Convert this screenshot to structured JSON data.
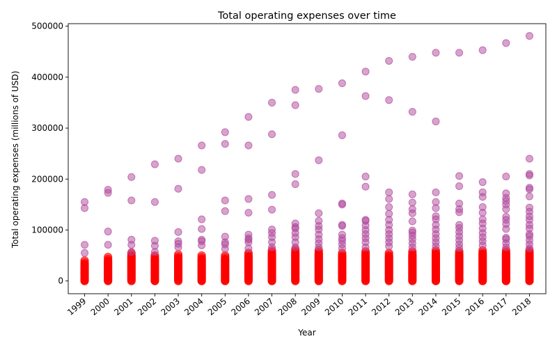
{
  "chart_data": {
    "type": "scatter",
    "title": "Total operating expenses over time",
    "xlabel": "Year",
    "ylabel": "Total operating expenses (millions of USD)",
    "xlim": [
      1998.3,
      2018.7
    ],
    "ylim": [
      -25000,
      505000
    ],
    "x_ticks": [
      1999,
      2000,
      2001,
      2002,
      2003,
      2004,
      2005,
      2006,
      2007,
      2008,
      2009,
      2010,
      2011,
      2012,
      2013,
      2014,
      2015,
      2016,
      2017,
      2018
    ],
    "x_tick_labels": [
      "1999",
      "2000",
      "2001",
      "2002",
      "2003",
      "2004",
      "2005",
      "2006",
      "2007",
      "2008",
      "2009",
      "2010",
      "2011",
      "2012",
      "2013",
      "2014",
      "2015",
      "2016",
      "2017",
      "2018"
    ],
    "y_ticks": [
      0,
      100000,
      200000,
      300000,
      400000,
      500000
    ],
    "y_tick_labels": [
      "0",
      "100000",
      "200000",
      "300000",
      "400000",
      "500000"
    ],
    "grid": false,
    "marker_color": "#b0479b",
    "dense_color": "#ff0000",
    "x_tick_rotation_deg": 40,
    "points": [
      {
        "year": 1999,
        "values": [
          155000,
          143000,
          71000,
          55000
        ]
      },
      {
        "year": 2000,
        "values": [
          179000,
          173000,
          97000,
          71000
        ]
      },
      {
        "year": 2001,
        "values": [
          204000,
          158000,
          81000,
          71000,
          57000
        ]
      },
      {
        "year": 2002,
        "values": [
          229000,
          155000,
          79000,
          69000,
          57000
        ]
      },
      {
        "year": 2003,
        "values": [
          240000,
          181000,
          96000,
          78000,
          73000,
          66000
        ]
      },
      {
        "year": 2004,
        "values": [
          266000,
          218000,
          121000,
          102000,
          81000,
          78000,
          70000
        ]
      },
      {
        "year": 2005,
        "values": [
          292000,
          269000,
          158000,
          137000,
          87000,
          76000,
          72000,
          63000
        ]
      },
      {
        "year": 2006,
        "values": [
          322000,
          266000,
          161000,
          134000,
          91000,
          84000,
          81000,
          76000,
          64000
        ]
      },
      {
        "year": 2007,
        "values": [
          350000,
          288000,
          169000,
          140000,
          101000,
          94000,
          86000,
          76000,
          66000
        ]
      },
      {
        "year": 2008,
        "values": [
          375000,
          345000,
          210000,
          190000,
          113000,
          106000,
          103000,
          94000,
          86000,
          76000,
          66000
        ]
      },
      {
        "year": 2009,
        "values": [
          377000,
          237000,
          133000,
          118000,
          108000,
          101000,
          91000,
          82000,
          74000,
          66000
        ]
      },
      {
        "year": 2010,
        "values": [
          388000,
          286000,
          152000,
          150000,
          110000,
          108000,
          91000,
          84000,
          79000,
          72000,
          64000
        ]
      },
      {
        "year": 2011,
        "values": [
          411000,
          363000,
          205000,
          185000,
          120000,
          118000,
          109000,
          100000,
          92000,
          84000,
          76000,
          66000
        ]
      },
      {
        "year": 2012,
        "values": [
          432000,
          355000,
          174000,
          161000,
          145000,
          132000,
          120000,
          110000,
          100000,
          92000,
          84000,
          76000,
          68000
        ]
      },
      {
        "year": 2013,
        "values": [
          440000,
          332000,
          170000,
          154000,
          141000,
          133000,
          117000,
          99000,
          95000,
          89000,
          82000,
          74000,
          66000
        ]
      },
      {
        "year": 2014,
        "values": [
          448000,
          313000,
          174000,
          155000,
          143000,
          127000,
          121000,
          110000,
          101000,
          92000,
          84000,
          76000,
          68000
        ]
      },
      {
        "year": 2015,
        "values": [
          448000,
          206000,
          186000,
          152000,
          141000,
          135000,
          110000,
          104000,
          96000,
          88000,
          80000,
          72000,
          65000
        ]
      },
      {
        "year": 2016,
        "values": [
          453000,
          194000,
          174000,
          165000,
          145000,
          134000,
          121000,
          113000,
          103000,
          94000,
          86000,
          78000,
          70000
        ]
      },
      {
        "year": 2017,
        "values": [
          467000,
          205000,
          172000,
          163000,
          157000,
          150000,
          141000,
          126000,
          120000,
          112000,
          102000,
          85000,
          82000,
          74000,
          66000
        ]
      },
      {
        "year": 2018,
        "values": [
          481000,
          240000,
          210000,
          207000,
          183000,
          180000,
          166000,
          144000,
          136000,
          127000,
          120000,
          110000,
          103000,
          92000,
          88000,
          80000,
          72000,
          64000
        ]
      }
    ],
    "dense_band": [
      {
        "year": 1999,
        "top": 40000
      },
      {
        "year": 2000,
        "top": 47000
      },
      {
        "year": 2001,
        "top": 55000
      },
      {
        "year": 2002,
        "top": 50000
      },
      {
        "year": 2003,
        "top": 52000
      },
      {
        "year": 2004,
        "top": 50000
      },
      {
        "year": 2005,
        "top": 50000
      },
      {
        "year": 2006,
        "top": 55000
      },
      {
        "year": 2007,
        "top": 60000
      },
      {
        "year": 2008,
        "top": 62000
      },
      {
        "year": 2009,
        "top": 60000
      },
      {
        "year": 2010,
        "top": 55000
      },
      {
        "year": 2011,
        "top": 58000
      },
      {
        "year": 2012,
        "top": 55000
      },
      {
        "year": 2013,
        "top": 58000
      },
      {
        "year": 2014,
        "top": 60000
      },
      {
        "year": 2015,
        "top": 58000
      },
      {
        "year": 2016,
        "top": 60000
      },
      {
        "year": 2017,
        "top": 60000
      },
      {
        "year": 2018,
        "top": 60000
      }
    ]
  }
}
